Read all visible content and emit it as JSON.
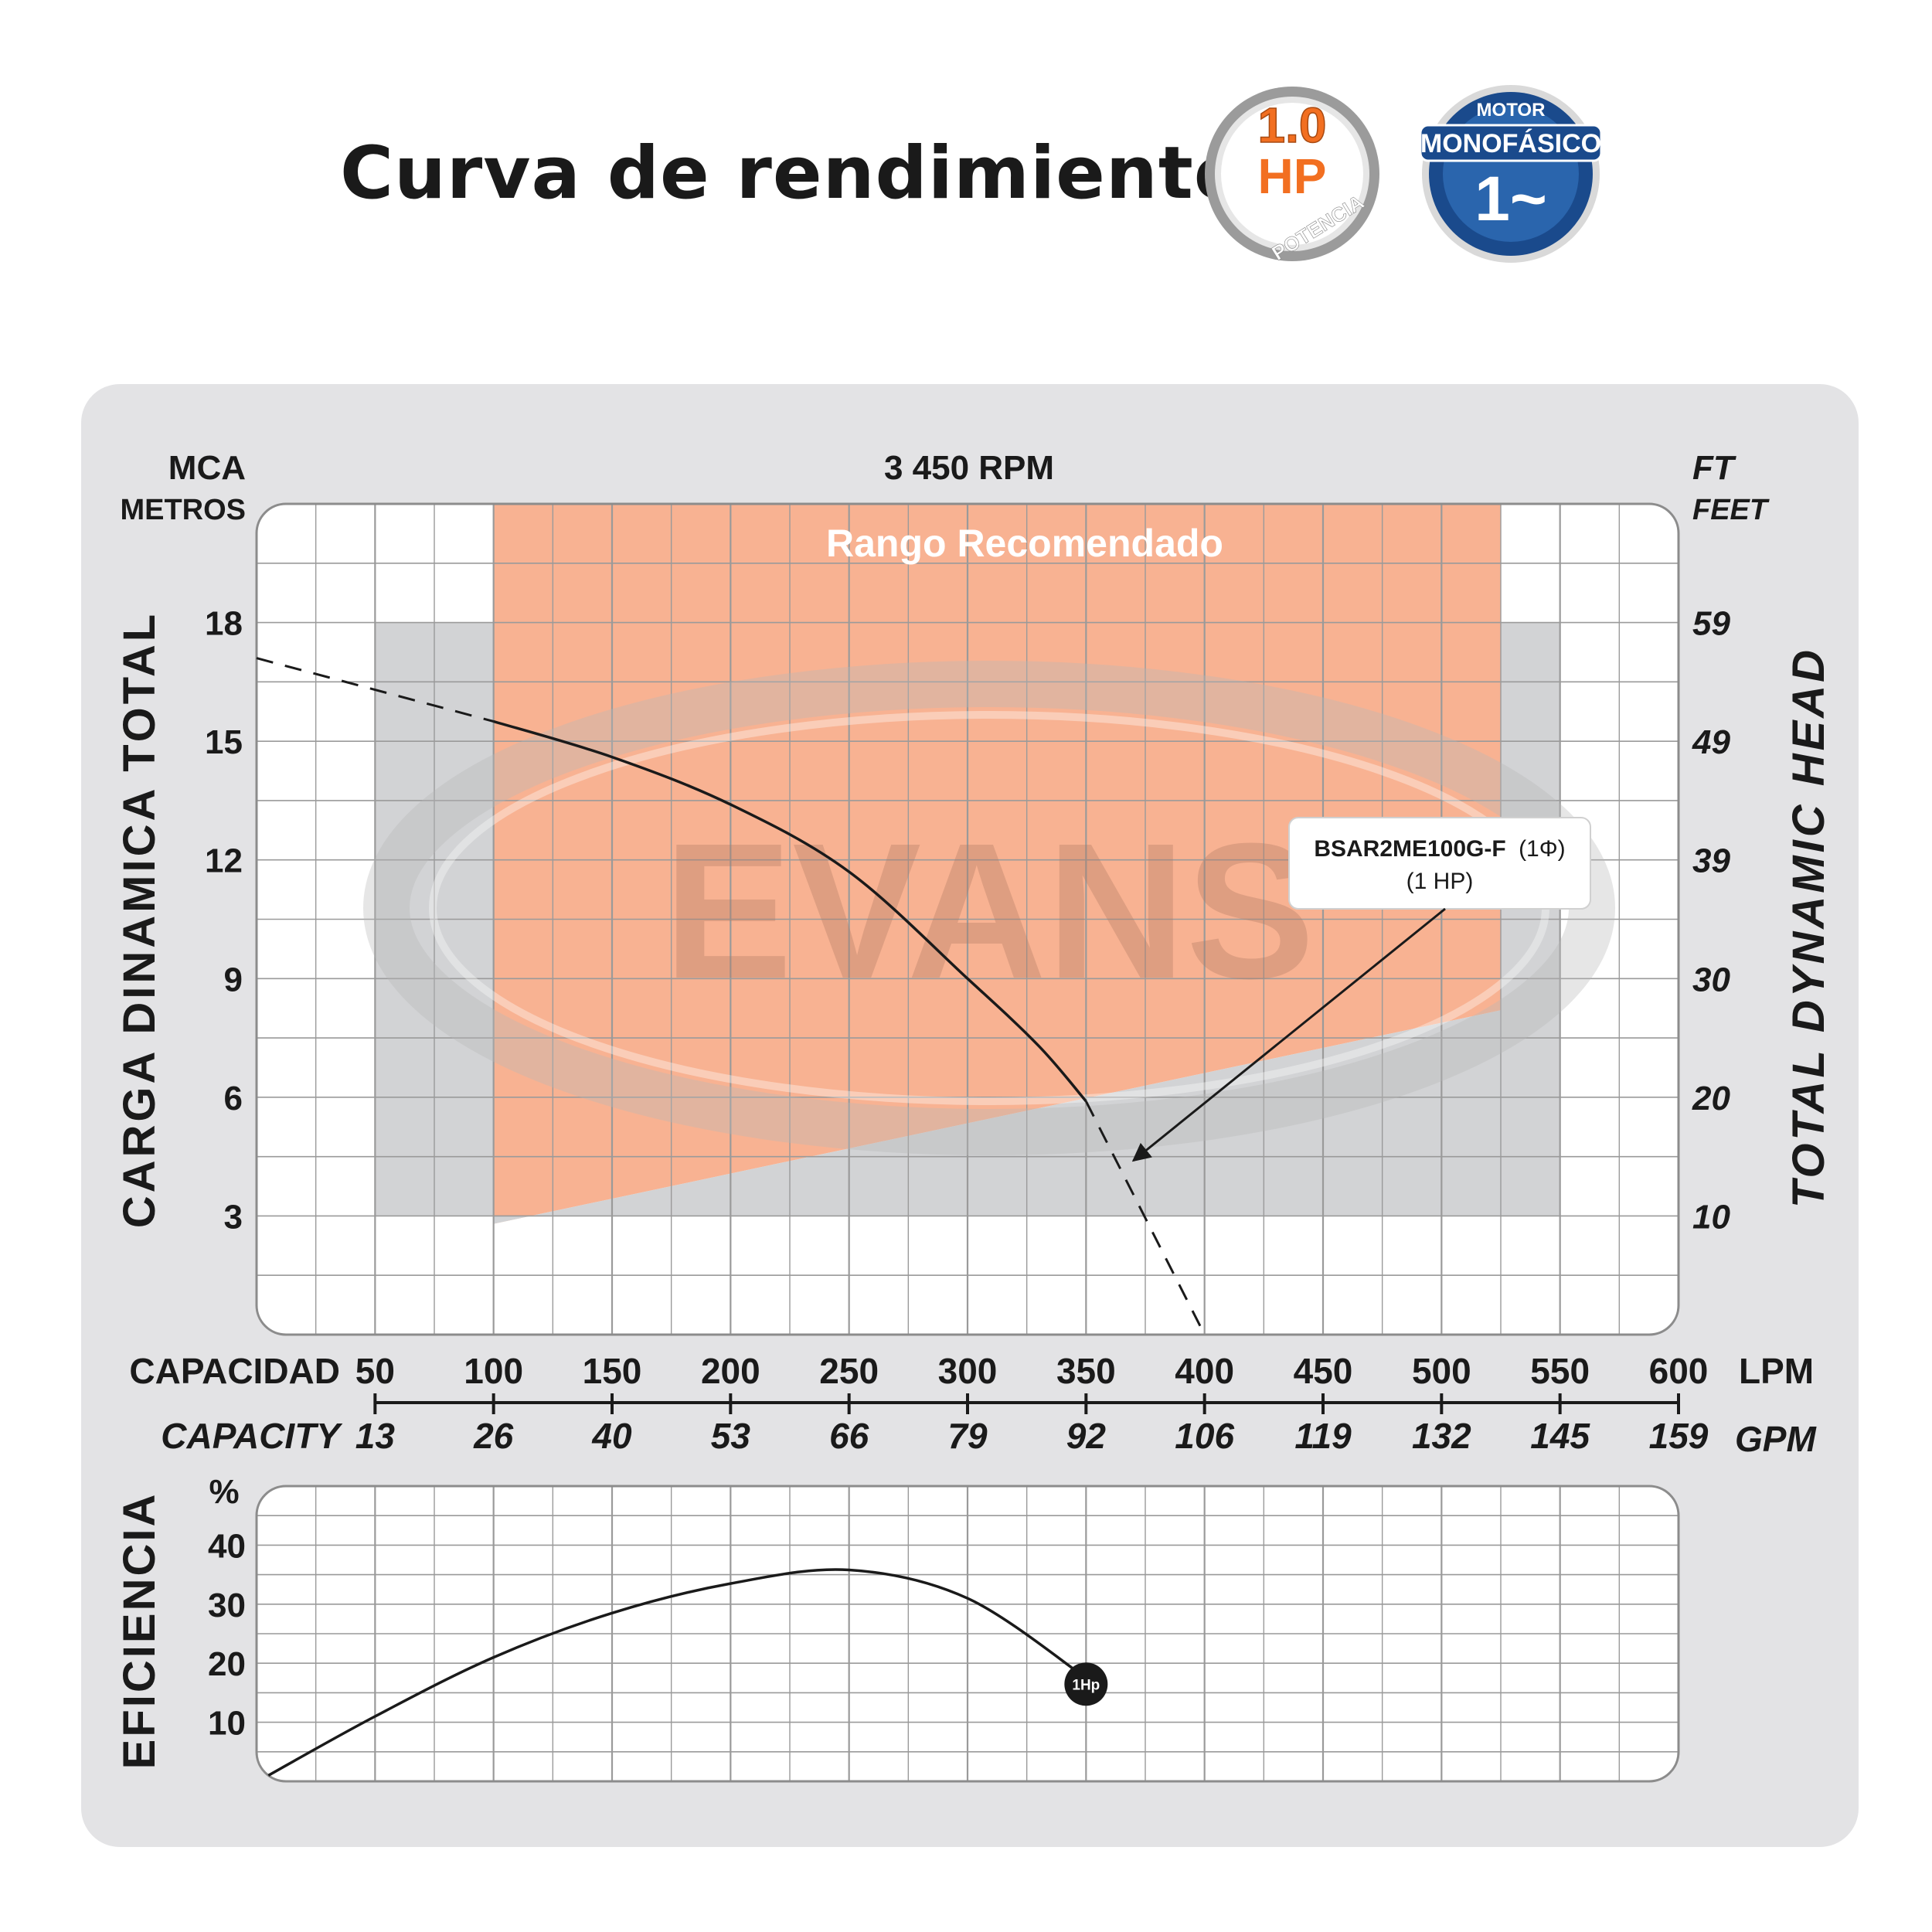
{
  "header": {
    "title": "Curva de rendimiento:",
    "badge_power": {
      "value": "1.0",
      "unit": "HP",
      "caption": "POTENCIA",
      "color": "#f26f21"
    },
    "badge_motor": {
      "top": "MOTOR",
      "middle": "MONOFÁSICO",
      "bottom": "1~",
      "color": "#1a4a8c"
    }
  },
  "chart_data": [
    {
      "type": "line",
      "title": "3 450 RPM",
      "left_unit": [
        "MCA",
        "METROS"
      ],
      "right_unit": [
        "FT",
        "FEET"
      ],
      "ylabel": "CARGA DINAMICA TOTAL",
      "ylabel_right": "TOTAL DYNAMIC HEAD",
      "xlabel": "CAPACIDAD",
      "xlabel_secondary": "CAPACITY",
      "x_unit": "LPM",
      "x_unit_secondary": "GPM",
      "xlim": [
        0,
        600
      ],
      "ylim": [
        0,
        21
      ],
      "x_ticks": [
        "50",
        "100",
        "150",
        "200",
        "250",
        "300",
        "350",
        "400",
        "450",
        "500",
        "550",
        "600"
      ],
      "x_ticks_gpm": [
        "13",
        "26",
        "40",
        "53",
        "66",
        "79",
        "92",
        "106",
        "119",
        "132",
        "145",
        "159"
      ],
      "y_ticks": [
        "3",
        "6",
        "9",
        "12",
        "15",
        "18"
      ],
      "y_ticks_ft": [
        "10",
        "20",
        "30",
        "39",
        "49",
        "59"
      ],
      "recommended_range": {
        "label": "Rango Recomendado",
        "x": [
          100,
          525
        ],
        "color": "#f7a57f"
      },
      "series": [
        {
          "name": "BSAR2ME100G-F",
          "x": [
            100,
            150,
            200,
            250,
            300,
            330,
            350
          ],
          "y": [
            15.5,
            14.6,
            13.4,
            11.7,
            9.0,
            7.3,
            5.9
          ],
          "extrapolated_low": {
            "x": [
              0,
              100
            ],
            "y": [
              17.1,
              15.5
            ]
          },
          "extrapolated_high": {
            "x": [
              350,
              400
            ],
            "y": [
              5.9,
              0.0
            ]
          }
        }
      ],
      "annotation": {
        "line1": "BSAR2ME100G-F",
        "line1_suffix": "(1Φ)",
        "line2": "(1 HP)",
        "target": {
          "x": 370,
          "y": 4.4
        }
      },
      "watermark": "EVANS"
    },
    {
      "type": "line",
      "ylabel": "EFICIENCIA",
      "y_unit": "%",
      "xlim": [
        0,
        600
      ],
      "ylim": [
        0,
        50
      ],
      "y_ticks": [
        "10",
        "20",
        "30",
        "40"
      ],
      "series": [
        {
          "name": "1Hp",
          "x": [
            5,
            50,
            100,
            150,
            200,
            250,
            300,
            350
          ],
          "y": [
            1,
            11,
            21,
            28.5,
            33.5,
            35.8,
            31,
            17.5
          ]
        }
      ]
    }
  ]
}
